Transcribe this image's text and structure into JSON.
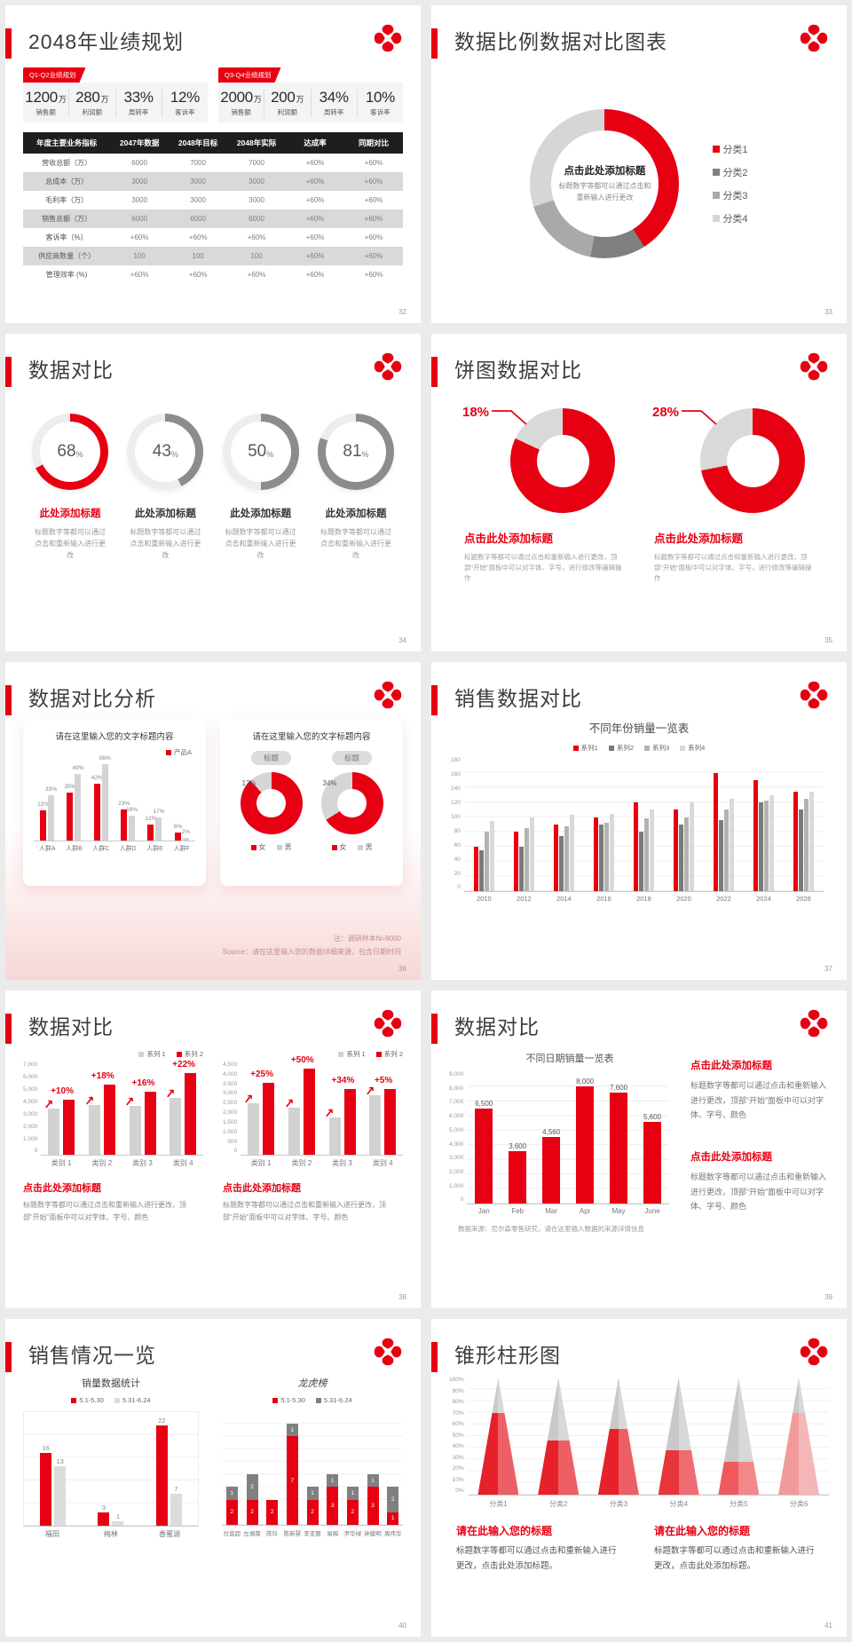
{
  "page_bg": "#ebebeb",
  "brand": {
    "accent_red": "#e60012",
    "logo": "clover-logo"
  },
  "slides": {
    "s32": {
      "page": "32",
      "title": "2048年业绩规划",
      "groups": [
        {
          "badge": "Q1-Q2业绩规划",
          "stats": [
            {
              "value": "1200",
              "unit": "万",
              "label": "销售额"
            },
            {
              "value": "280",
              "unit": "万",
              "label": "利润额"
            },
            {
              "value": "33%",
              "unit": "",
              "label": "周转率"
            },
            {
              "value": "12%",
              "unit": "",
              "label": "客诉率"
            }
          ]
        },
        {
          "badge": "Q3-Q4业绩规划",
          "stats": [
            {
              "value": "2000",
              "unit": "万",
              "label": "销售额"
            },
            {
              "value": "200",
              "unit": "万",
              "label": "利润额"
            },
            {
              "value": "34%",
              "unit": "",
              "label": "周转率"
            },
            {
              "value": "10%",
              "unit": "",
              "label": "客诉率"
            }
          ]
        }
      ],
      "table": {
        "headers": [
          "年度主要业务指标",
          "2047年数据",
          "2048年目标",
          "2048年实际",
          "达成率",
          "同期对比"
        ],
        "rows": [
          [
            "营收总额（万）",
            "6000",
            "7000",
            "7000",
            "+60%",
            "+60%"
          ],
          [
            "总成本（万）",
            "3000",
            "3000",
            "3000",
            "+60%",
            "+60%"
          ],
          [
            "毛利率（万）",
            "3000",
            "3000",
            "3000",
            "+60%",
            "+60%"
          ],
          [
            "销售总额（万）",
            "6000",
            "6000",
            "6000",
            "+60%",
            "+60%"
          ],
          [
            "客诉率（%）",
            "+60%",
            "+60%",
            "+60%",
            "+60%",
            "+60%"
          ],
          [
            "供应商数量（个）",
            "100",
            "100",
            "100",
            "+60%",
            "+60%"
          ],
          [
            "管理效率 (%)",
            "+60%",
            "+60%",
            "+60%",
            "+60%",
            "+60%"
          ]
        ]
      }
    },
    "s33": {
      "page": "33",
      "title": "数据比例数据对比图表",
      "center_title": "点击此处添加标题",
      "center_desc": "标题数字等都可以通过点击和重新输入进行更改"
    },
    "s34": {
      "page": "34",
      "title": "数据对比",
      "item_title": "此处添加标题",
      "item_desc": "标题数字等都可以通过点击和重新输入进行更改"
    },
    "s35": {
      "page": "35",
      "title": "饼图数据对比",
      "item_title": "点击此处添加标题",
      "item_desc": "标题数字等都可以通过点击和重新输入进行更改，顶部“开始”面板中可以对字体、字号，进行修改等编辑操作"
    },
    "s36": {
      "page": "36",
      "title": "数据对比分析",
      "card_title": "请在这里输入您的文字标题内容",
      "pill": "标题",
      "note1": "注：调研样本N=9000",
      "note2": "Source：请在这里输入您的数据详细来源，包含日期时间"
    },
    "s37": {
      "page": "37",
      "title": "销售数据对比"
    },
    "s38": {
      "page": "38",
      "title": "数据对比",
      "block_title": "点击此处添加标题",
      "block_desc": "标题数字等都可以通过点击和重新输入进行更改，顶部“开始”面板中可以对字体、字号、颜色"
    },
    "s39": {
      "page": "39",
      "title": "数据对比",
      "block_title": "点击此处添加标题",
      "block_desc": "标题数字等都可以通过点击和重新输入进行更改，顶部“开始”面板中可以对字体、字号、颜色",
      "note": "数据来源：尼尔森零售研究，请在这里输入数据的来源详情信息"
    },
    "s40": {
      "page": "40",
      "title": "销售情况一览"
    },
    "s41": {
      "page": "41",
      "title": "锥形柱形图",
      "block_title": "请在此输入您的标题",
      "block_desc": "标题数字等都可以通过点击和重新输入进行更改，点击此处添加标题。"
    }
  },
  "chart_data": [
    {
      "id": "donut33",
      "type": "pie",
      "legend_position": "right",
      "segments": [
        {
          "name": "分类1",
          "value": 41,
          "color": "#e60012"
        },
        {
          "name": "分类2",
          "value": 12,
          "color": "#808080"
        },
        {
          "name": "分类3",
          "value": 17,
          "color": "#a9a9a9"
        },
        {
          "name": "分类4",
          "value": 30,
          "color": "#d6d6d6"
        }
      ]
    },
    {
      "id": "gauges34",
      "type": "gauge",
      "items": [
        {
          "value": 68,
          "color": "#e60012"
        },
        {
          "value": 43,
          "color": "#8c8c8c"
        },
        {
          "value": 50,
          "color": "#8c8c8c"
        },
        {
          "value": 81,
          "color": "#8c8c8c"
        }
      ]
    },
    {
      "id": "pies35",
      "type": "pie",
      "items": [
        {
          "label": "18%",
          "gray": 18,
          "red": 82
        },
        {
          "label": "28%",
          "gray": 28,
          "red": 72
        }
      ],
      "colors": {
        "red": "#e60012",
        "gray": "#d9d9d9"
      }
    },
    {
      "id": "bars36",
      "type": "bar",
      "categories": [
        "人群A",
        "人群B",
        "人群C",
        "人群D",
        "人群E",
        "人群F"
      ],
      "series": [
        {
          "name": "产品A",
          "color": "#e60012",
          "values": [
            22,
            35,
            42,
            23,
            12,
            6
          ]
        },
        {
          "name": "",
          "color": "#d4d4d4",
          "values": [
            33,
            49,
            56,
            18,
            17,
            2
          ]
        }
      ],
      "ylim": [
        0,
        60
      ],
      "label_suffix": "%"
    },
    {
      "id": "donuts36",
      "type": "pie",
      "items": [
        {
          "label": "12%",
          "gray": 12,
          "red": 88
        },
        {
          "label": "34%",
          "gray": 34,
          "red": 66
        }
      ],
      "legend": [
        {
          "name": "女",
          "color": "#e60012"
        },
        {
          "name": "男",
          "color": "#cfcfcf"
        }
      ]
    },
    {
      "id": "bars37",
      "type": "bar",
      "title": "不同年份销量一览表",
      "categories": [
        "2010",
        "2012",
        "2014",
        "2016",
        "2018",
        "2020",
        "2022",
        "2024",
        "2026"
      ],
      "series": [
        {
          "name": "系列1",
          "color": "#e60012",
          "values": [
            60,
            80,
            90,
            100,
            120,
            110,
            160,
            150,
            135
          ]
        },
        {
          "name": "系列2",
          "color": "#7a7a7a",
          "values": [
            55,
            60,
            75,
            90,
            80,
            90,
            96,
            120,
            110
          ]
        },
        {
          "name": "系列3",
          "color": "#b3b3b3",
          "values": [
            80,
            85,
            88,
            92,
            98,
            100,
            110,
            122,
            125
          ]
        },
        {
          "name": "系列4",
          "color": "#d9d9d9",
          "values": [
            95,
            100,
            103,
            105,
            110,
            120,
            125,
            130,
            135
          ]
        }
      ],
      "ylim": [
        0,
        180
      ],
      "ystep": 20,
      "grid": true
    },
    {
      "id": "bars38a",
      "type": "bar",
      "categories": [
        "类别 1",
        "类别 2",
        "类别 3",
        "类别 4"
      ],
      "series": [
        {
          "name": "系列 1",
          "color": "#d2d2d2",
          "values": [
            3500,
            3800,
            3700,
            4300
          ]
        },
        {
          "name": "系列 2",
          "color": "#e60012",
          "values": [
            4200,
            5300,
            4800,
            6200
          ]
        }
      ],
      "growth": [
        "+10%",
        "+18%",
        "+16%",
        "+22%"
      ],
      "ylim": [
        0,
        7000
      ],
      "ystep": 1000
    },
    {
      "id": "bars38b",
      "type": "bar",
      "categories": [
        "类别 1",
        "类别 2",
        "类别 3",
        "类别 4"
      ],
      "series": [
        {
          "name": "系列 1",
          "color": "#d2d2d2",
          "values": [
            2500,
            2300,
            1800,
            2900
          ]
        },
        {
          "name": "系列 2",
          "color": "#e60012",
          "values": [
            3500,
            4200,
            3200,
            3200
          ]
        }
      ],
      "growth": [
        "+25%",
        "+50%",
        "+34%",
        "+5%"
      ],
      "ylim": [
        0,
        4500
      ],
      "ystep": 500
    },
    {
      "id": "bars39",
      "type": "bar",
      "title": "不同日期销量一览表",
      "categories": [
        "Jan",
        "Feb",
        "Mar",
        "Apr",
        "May",
        "June"
      ],
      "series": [
        {
          "name": "销量",
          "color": "#e60012",
          "values": [
            6500,
            3600,
            4560,
            8000,
            7600,
            5600
          ]
        }
      ],
      "value_labels": [
        "6,500",
        "3,600",
        "4,560",
        "8,000",
        "7,600",
        "5,600"
      ],
      "ylim": [
        0,
        9000
      ],
      "ystep": 1000,
      "grid": true
    },
    {
      "id": "bars40a",
      "type": "bar",
      "title": "销量数据统计",
      "categories": [
        "福田",
        "梅林",
        "香蜜湖"
      ],
      "series": [
        {
          "name": "5.1-5.30",
          "color": "#e60012",
          "values": [
            16,
            3,
            22
          ]
        },
        {
          "name": "5.31-6.24",
          "color": "#dcdcdc",
          "values": [
            13,
            1,
            7
          ]
        }
      ],
      "ylim": [
        0,
        25
      ],
      "ystep": 5,
      "grid": true
    },
    {
      "id": "stack40b",
      "type": "stacked-bar",
      "title": "龙虎榜",
      "categories": [
        "付直超",
        "左湘南",
        "陈玲",
        "陈新慧",
        "李亚丽",
        "易梅",
        "尹华绿",
        "钟建明",
        "周伟华"
      ],
      "series": [
        {
          "name": "5.1-5.30",
          "color": "#e60012",
          "values": [
            2,
            2,
            2,
            7,
            2,
            3,
            2,
            3,
            1
          ]
        },
        {
          "name": "5.31-6.24",
          "color": "#808080",
          "values": [
            1,
            2,
            0,
            1,
            1,
            1,
            1,
            1,
            2
          ]
        }
      ],
      "ylim": [
        0,
        9
      ],
      "grid": true
    },
    {
      "id": "cones41",
      "type": "cone",
      "categories": [
        "分类1",
        "分类2",
        "分类3",
        "分类4",
        "分类5",
        "分类6"
      ],
      "values": [
        70,
        46,
        56,
        38,
        28,
        70
      ],
      "colors": [
        "#e62129",
        "#e62129",
        "#e62129",
        "#e8343b",
        "#ee5a5e",
        "#f19a9c"
      ],
      "gray": "#c9c9c9",
      "ylim": [
        0,
        100
      ],
      "ystep": 10
    }
  ]
}
